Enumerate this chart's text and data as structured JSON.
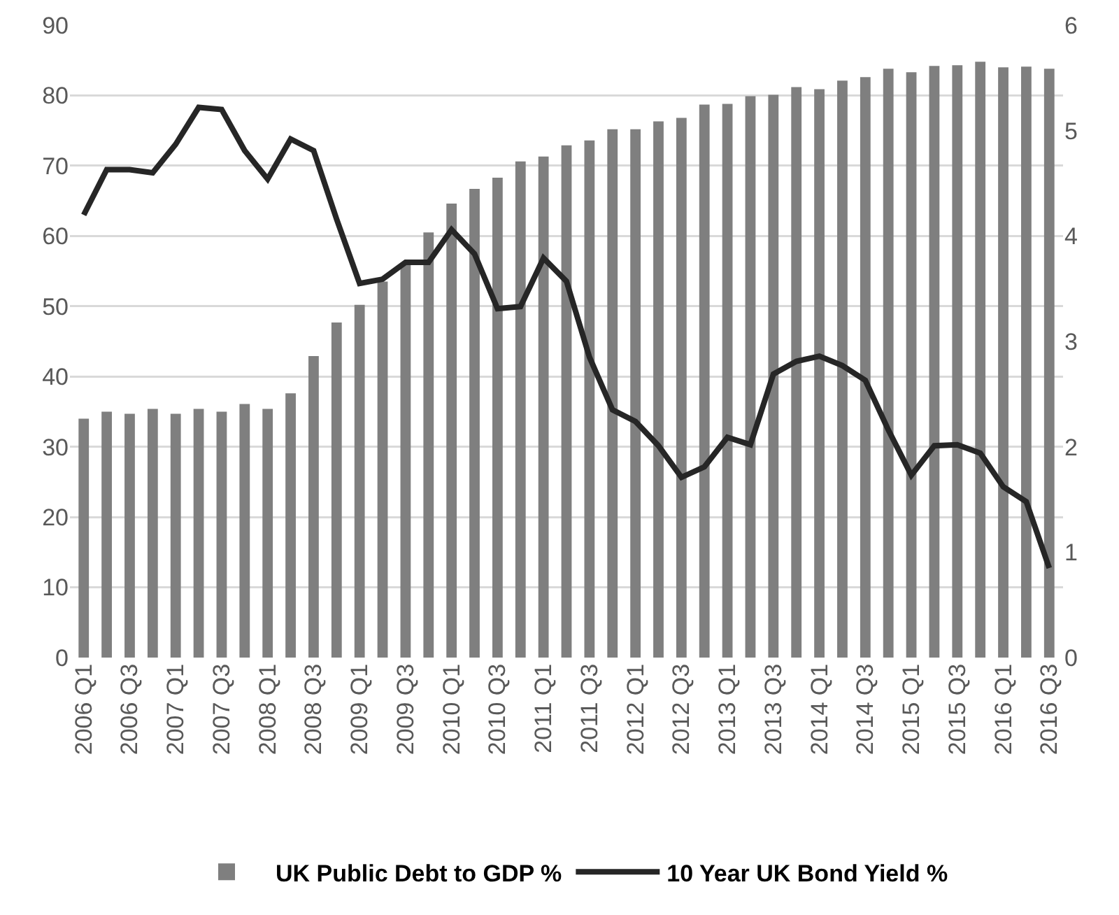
{
  "chart_data": {
    "type": "bar",
    "categories": [
      "2006 Q1",
      null,
      "2006 Q3",
      null,
      "2007 Q1",
      null,
      "2007 Q3",
      null,
      "2008 Q1",
      null,
      "2008 Q3",
      null,
      "2009 Q1",
      null,
      "2009 Q3",
      null,
      "2010 Q1",
      null,
      "2010 Q3",
      null,
      "2011 Q1",
      null,
      "2011 Q3",
      null,
      "2012 Q1",
      null,
      "2012 Q3",
      null,
      "2013 Q1",
      null,
      "2013 Q3",
      null,
      "2014 Q1",
      null,
      "2014 Q3",
      null,
      "2015 Q1",
      null,
      "2015 Q3",
      null,
      "2016 Q1",
      null,
      "2016 Q3"
    ],
    "series": [
      {
        "name": "UK Public Debt to GDP %",
        "color": "#7f7f7f",
        "values": [
          34.0,
          35.0,
          34.7,
          35.4,
          34.7,
          35.4,
          35.0,
          36.1,
          35.4,
          37.6,
          42.9,
          47.7,
          50.2,
          53.5,
          56.0,
          60.5,
          64.6,
          66.7,
          68.3,
          70.6,
          71.3,
          72.9,
          73.6,
          75.2,
          75.2,
          76.3,
          76.8,
          78.7,
          78.8,
          79.9,
          80.1,
          81.2,
          80.9,
          82.1,
          82.6,
          83.8,
          83.3,
          84.2,
          84.3,
          84.8,
          84.0,
          84.1,
          83.8
        ]
      },
      {
        "name": "10 Year UK Bond Yield %",
        "type": "line",
        "axis": "y2",
        "color": "#262626",
        "values": [
          4.2,
          4.63,
          4.63,
          4.6,
          4.87,
          5.22,
          5.2,
          4.81,
          4.54,
          4.92,
          4.81,
          4.16,
          3.55,
          3.59,
          3.75,
          3.75,
          4.06,
          3.83,
          3.31,
          3.33,
          3.79,
          3.57,
          2.85,
          2.35,
          2.24,
          2.01,
          1.71,
          1.81,
          2.09,
          2.02,
          2.69,
          2.81,
          2.86,
          2.77,
          2.63,
          2.16,
          1.73,
          2.01,
          2.02,
          1.94,
          1.62,
          1.48,
          0.85
        ]
      }
    ],
    "ylim": [
      0,
      90
    ],
    "yticks": [
      0,
      10,
      20,
      30,
      40,
      50,
      60,
      70,
      80,
      90
    ],
    "y2lim": [
      0,
      6
    ],
    "y2ticks": [
      0,
      1,
      2,
      3,
      4,
      5,
      6
    ],
    "grid": "y",
    "legend": "bottom",
    "marker": "none",
    "line_style": "solid"
  }
}
